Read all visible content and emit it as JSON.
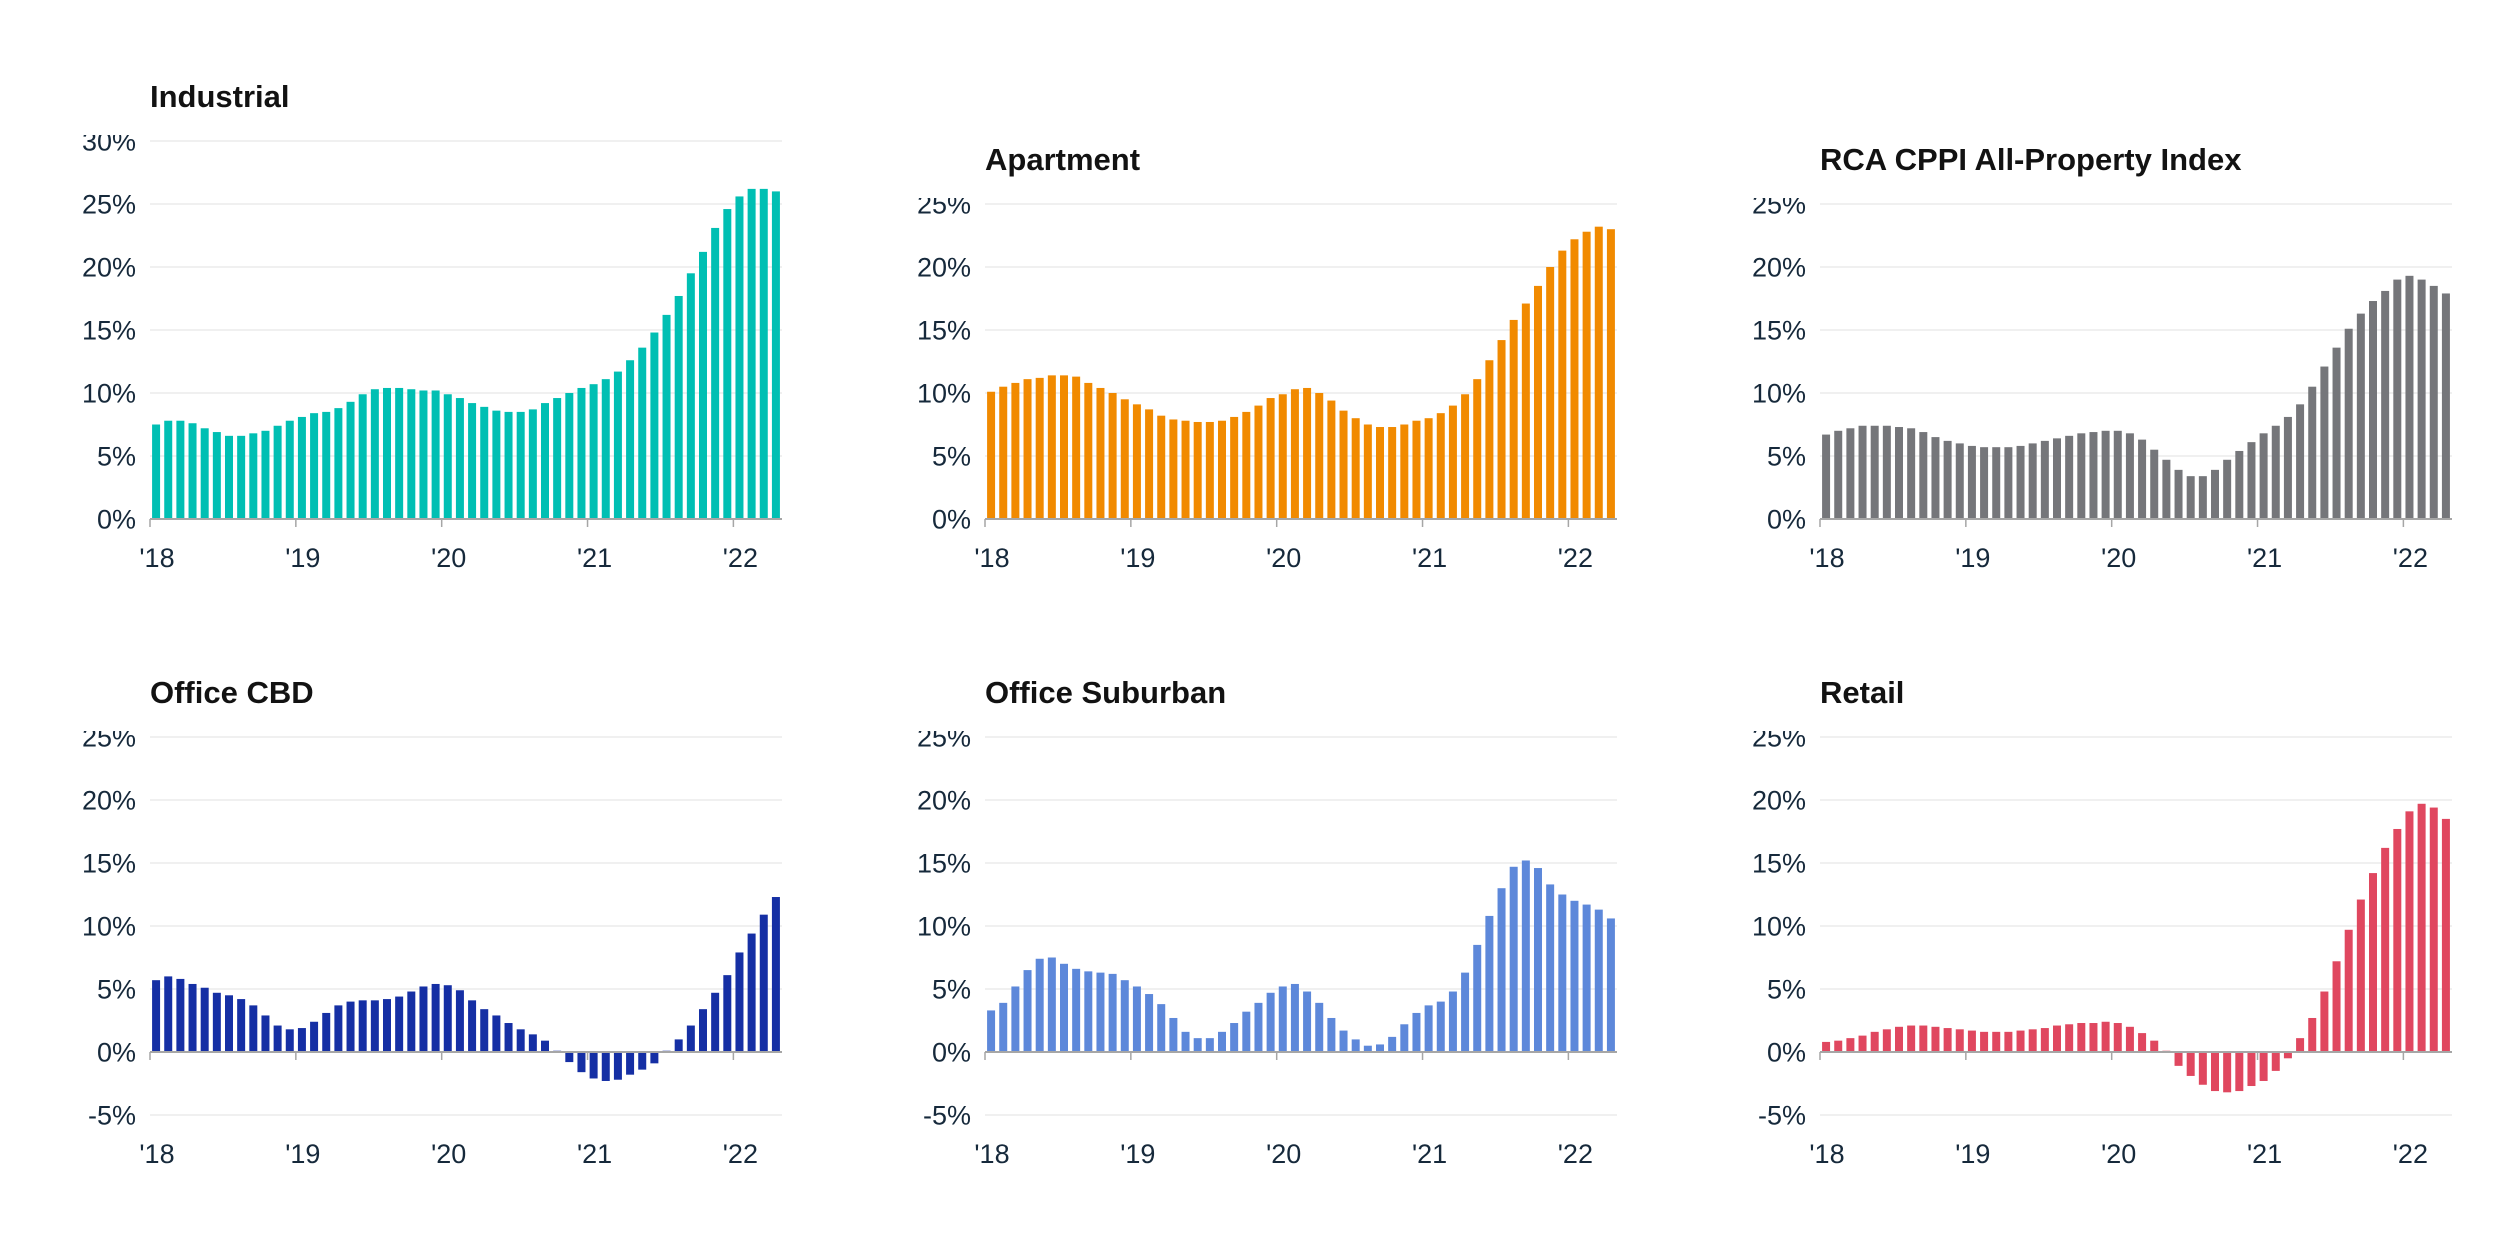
{
  "style": {
    "background": "#ffffff",
    "gridline_color": "#e2e2e2",
    "axis_line_color": "#a6a6a6",
    "axis_label_color": "#16293b",
    "title_color": "#121212"
  },
  "chart_data": [
    {
      "type": "bar",
      "name": "industrial",
      "title": "Industrial",
      "color": "#00bfb3",
      "ylim": [
        0,
        30
      ],
      "ytick_step": 5,
      "y_tick_labels": [
        "30%",
        "25%",
        "20%",
        "15%",
        "10%",
        "5%",
        "0%"
      ],
      "x_tick_labels": [
        "'18",
        "'19",
        "'20",
        "'21",
        "'22"
      ],
      "x_tick_month_indexes": [
        0,
        12,
        24,
        36,
        48
      ],
      "x_range": "monthly, Jan 2018 - Apr 2022",
      "values": [
        7.5,
        7.8,
        7.8,
        7.6,
        7.2,
        6.9,
        6.6,
        6.6,
        6.8,
        7.0,
        7.4,
        7.8,
        8.1,
        8.4,
        8.5,
        8.8,
        9.3,
        9.9,
        10.3,
        10.4,
        10.4,
        10.3,
        10.2,
        10.2,
        9.9,
        9.6,
        9.2,
        8.9,
        8.6,
        8.5,
        8.5,
        8.7,
        9.2,
        9.6,
        10.0,
        10.4,
        10.7,
        11.1,
        11.7,
        12.6,
        13.6,
        14.8,
        16.2,
        17.7,
        19.5,
        21.2,
        23.1,
        24.6,
        25.6,
        26.2,
        26.2,
        26.0
      ]
    },
    {
      "type": "bar",
      "name": "apartment",
      "title": "Apartment",
      "color": "#f18a00",
      "ylim": [
        0,
        25
      ],
      "ytick_step": 5,
      "y_tick_labels": [
        "25%",
        "20%",
        "15%",
        "10%",
        "5%",
        "0%"
      ],
      "x_tick_labels": [
        "'18",
        "'19",
        "'20",
        "'21",
        "'22"
      ],
      "x_tick_month_indexes": [
        0,
        12,
        24,
        36,
        48
      ],
      "x_range": "monthly, Jan 2018 - Apr 2022",
      "values": [
        10.1,
        10.5,
        10.8,
        11.1,
        11.2,
        11.4,
        11.4,
        11.3,
        10.8,
        10.4,
        10.0,
        9.5,
        9.1,
        8.7,
        8.2,
        7.9,
        7.8,
        7.7,
        7.7,
        7.8,
        8.1,
        8.5,
        9.0,
        9.6,
        9.9,
        10.3,
        10.4,
        10.0,
        9.4,
        8.6,
        8.0,
        7.5,
        7.3,
        7.3,
        7.5,
        7.8,
        8.0,
        8.4,
        9.0,
        9.9,
        11.1,
        12.6,
        14.2,
        15.8,
        17.1,
        18.5,
        20.0,
        21.3,
        22.2,
        22.8,
        23.2,
        23.0
      ]
    },
    {
      "type": "bar",
      "name": "all-property-index",
      "title": "RCA CPPI All-Property Index",
      "color": "#75767a",
      "ylim": [
        0,
        25
      ],
      "ytick_step": 5,
      "y_tick_labels": [
        "25%",
        "20%",
        "15%",
        "10%",
        "5%",
        "0%"
      ],
      "x_tick_labels": [
        "'18",
        "'19",
        "'20",
        "'21",
        "'22"
      ],
      "x_tick_month_indexes": [
        0,
        12,
        24,
        36,
        48
      ],
      "x_range": "monthly, Jan 2018 - Apr 2022",
      "values": [
        6.7,
        7.0,
        7.2,
        7.4,
        7.4,
        7.4,
        7.3,
        7.2,
        6.9,
        6.5,
        6.2,
        6.0,
        5.8,
        5.7,
        5.7,
        5.7,
        5.8,
        6.0,
        6.2,
        6.4,
        6.6,
        6.8,
        6.9,
        7.0,
        7.0,
        6.8,
        6.3,
        5.5,
        4.7,
        3.9,
        3.4,
        3.4,
        3.9,
        4.7,
        5.4,
        6.1,
        6.8,
        7.4,
        8.1,
        9.1,
        10.5,
        12.1,
        13.6,
        15.1,
        16.3,
        17.3,
        18.1,
        19.0,
        19.3,
        19.0,
        18.5,
        17.9
      ]
    },
    {
      "type": "bar",
      "name": "office-cbd",
      "title": "Office CBD",
      "color": "#152fa4",
      "ylim": [
        -5,
        25
      ],
      "ytick_step": 5,
      "y_tick_labels": [
        "25%",
        "20%",
        "15%",
        "10%",
        "5%",
        "0%",
        "-5%"
      ],
      "x_tick_labels": [
        "'18",
        "'19",
        "'20",
        "'21",
        "'22"
      ],
      "x_tick_month_indexes": [
        0,
        12,
        24,
        36,
        48
      ],
      "x_range": "monthly, Jan 2018 - Apr 2022",
      "values": [
        5.7,
        6.0,
        5.8,
        5.4,
        5.1,
        4.7,
        4.5,
        4.2,
        3.7,
        2.9,
        2.1,
        1.8,
        1.9,
        2.4,
        3.1,
        3.7,
        4.0,
        4.1,
        4.1,
        4.2,
        4.4,
        4.8,
        5.2,
        5.4,
        5.3,
        4.9,
        4.1,
        3.4,
        2.9,
        2.3,
        1.8,
        1.4,
        0.9,
        0.1,
        -0.8,
        -1.6,
        -2.1,
        -2.3,
        -2.2,
        -1.8,
        -1.4,
        -0.9,
        0.1,
        1.0,
        2.1,
        3.4,
        4.7,
        6.1,
        7.9,
        9.4,
        10.9,
        12.3
      ]
    },
    {
      "type": "bar",
      "name": "office-suburban",
      "title": "Office Suburban",
      "color": "#5d88da",
      "ylim": [
        -5,
        25
      ],
      "ytick_step": 5,
      "y_tick_labels": [
        "25%",
        "20%",
        "15%",
        "10%",
        "5%",
        "0%",
        "-5%"
      ],
      "x_tick_labels": [
        "'18",
        "'19",
        "'20",
        "'21",
        "'22"
      ],
      "x_tick_month_indexes": [
        0,
        12,
        24,
        36,
        48
      ],
      "x_range": "monthly, Jan 2018 - Apr 2022",
      "values": [
        3.3,
        3.9,
        5.2,
        6.5,
        7.4,
        7.5,
        7.0,
        6.6,
        6.4,
        6.3,
        6.2,
        5.7,
        5.2,
        4.6,
        3.8,
        2.7,
        1.6,
        1.1,
        1.1,
        1.6,
        2.3,
        3.2,
        3.9,
        4.7,
        5.2,
        5.4,
        4.8,
        3.9,
        2.7,
        1.7,
        1.0,
        0.5,
        0.6,
        1.2,
        2.2,
        3.1,
        3.7,
        4.0,
        4.8,
        6.3,
        8.5,
        10.8,
        13.0,
        14.7,
        15.2,
        14.6,
        13.3,
        12.5,
        12.0,
        11.7,
        11.3,
        10.6
      ]
    },
    {
      "type": "bar",
      "name": "retail",
      "title": "Retail",
      "color": "#e0475f",
      "ylim": [
        -5,
        25
      ],
      "ytick_step": 5,
      "y_tick_labels": [
        "25%",
        "20%",
        "15%",
        "10%",
        "5%",
        "0%",
        "-5%"
      ],
      "x_tick_labels": [
        "'18",
        "'19",
        "'20",
        "'21",
        "'22"
      ],
      "x_tick_month_indexes": [
        0,
        12,
        24,
        36,
        48
      ],
      "x_range": "monthly, Jan 2018 - Apr 2022",
      "values": [
        0.8,
        0.9,
        1.1,
        1.3,
        1.6,
        1.8,
        2.0,
        2.1,
        2.1,
        2.0,
        1.9,
        1.8,
        1.7,
        1.6,
        1.6,
        1.6,
        1.7,
        1.8,
        1.9,
        2.1,
        2.2,
        2.3,
        2.3,
        2.4,
        2.3,
        2.0,
        1.5,
        0.9,
        0.1,
        -1.1,
        -1.9,
        -2.6,
        -3.1,
        -3.2,
        -3.1,
        -2.7,
        -2.3,
        -1.5,
        -0.5,
        1.1,
        2.7,
        4.8,
        7.2,
        9.7,
        12.1,
        14.2,
        16.2,
        17.7,
        19.1,
        19.7,
        19.4,
        18.5
      ]
    }
  ]
}
